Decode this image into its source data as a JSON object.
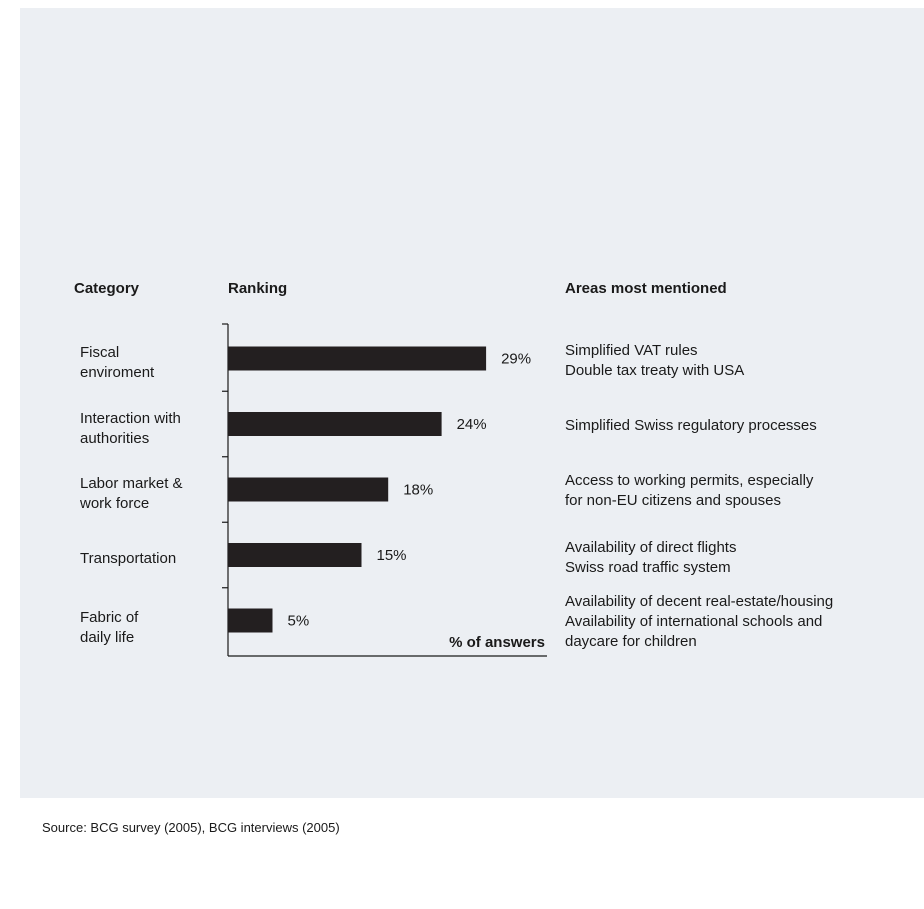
{
  "headers": {
    "category": "Category",
    "ranking": "Ranking",
    "areas": "Areas most mentioned"
  },
  "rows": [
    {
      "category": [
        "Fiscal",
        "enviroment"
      ],
      "value_label": "29%",
      "areas": [
        "Simplified VAT rules",
        "Double tax treaty with USA"
      ]
    },
    {
      "category": [
        "Interaction with",
        "authorities"
      ],
      "value_label": "24%",
      "areas": [
        "Simplified Swiss regulatory processes"
      ]
    },
    {
      "category": [
        "Labor market &",
        "work force"
      ],
      "value_label": "18%",
      "areas": [
        "Access to working permits, especially",
        "for non-EU citizens and spouses"
      ]
    },
    {
      "category": [
        "Transportation"
      ],
      "value_label": "15%",
      "areas": [
        "Availability of direct flights",
        "Swiss road traffic system"
      ]
    },
    {
      "category": [
        "Fabric of",
        "daily life"
      ],
      "value_label": "5%",
      "areas": [
        "Availability of decent real-estate/housing",
        "Availability of international schools and",
        "daycare for children"
      ]
    }
  ],
  "chart_data": {
    "type": "bar",
    "orientation": "horizontal",
    "categories": [
      "Fiscal enviroment",
      "Interaction with authorities",
      "Labor market & work force",
      "Transportation",
      "Fabric of daily life"
    ],
    "values": [
      29,
      24,
      18,
      15,
      5
    ],
    "xlabel": "% of answers",
    "ylabel": "",
    "bar_color": "#231f20"
  },
  "source": "Source: BCG survey (2005), BCG interviews (2005)",
  "colors": {
    "background": "#eceff3",
    "bar": "#231f20",
    "text": "#1a1a1a"
  }
}
